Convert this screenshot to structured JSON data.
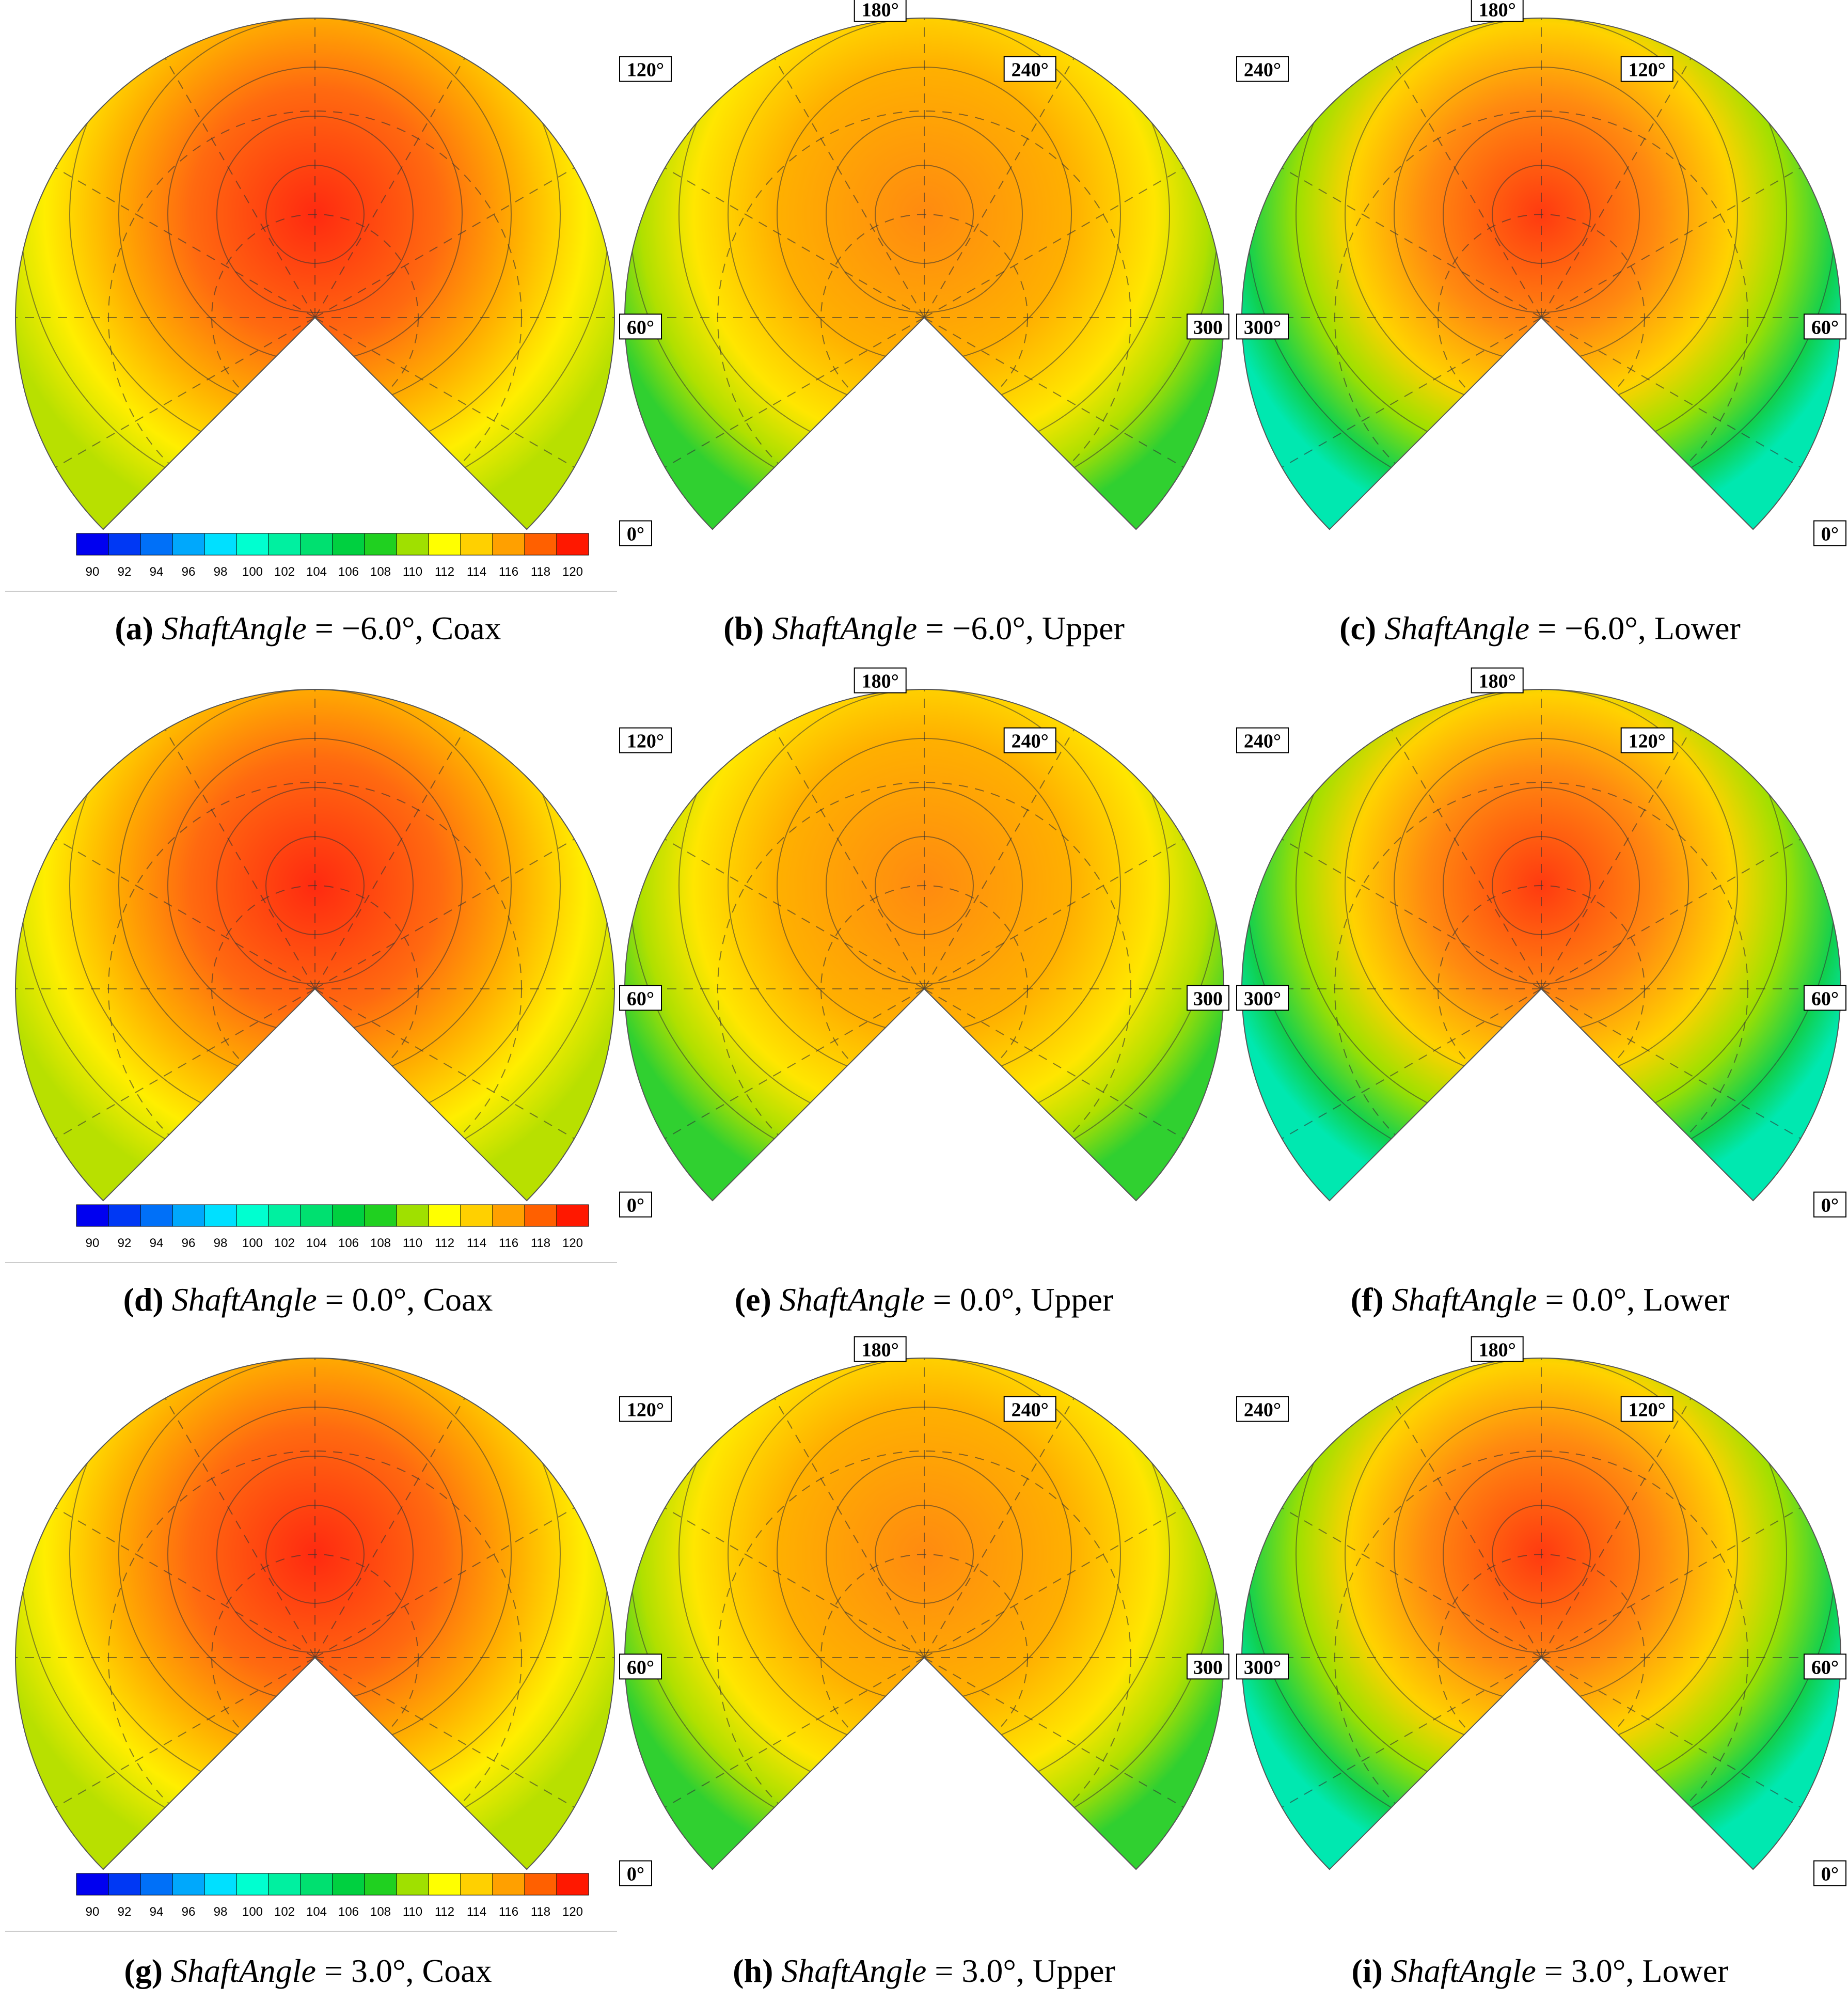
{
  "colorbar": {
    "labels": [
      "90",
      "92",
      "94",
      "96",
      "98",
      "100",
      "102",
      "104",
      "106",
      "108",
      "110",
      "112",
      "114",
      "116",
      "118",
      "120"
    ],
    "colors": [
      "#0000f0",
      "#0038f4",
      "#0070f8",
      "#00a8fc",
      "#00e0ff",
      "#00ffd0",
      "#00f0a0",
      "#00e070",
      "#00d040",
      "#20d020",
      "#a0e000",
      "#ffff00",
      "#ffd000",
      "#ffa000",
      "#ff6000",
      "#ff1800"
    ]
  },
  "chart_data": [
    {
      "id": "a",
      "type": "heatmap",
      "view": "coax",
      "shaft_angle": -6.0,
      "angle_labels": [],
      "range": [
        90,
        120
      ]
    },
    {
      "id": "b",
      "type": "heatmap",
      "view": "upper",
      "shaft_angle": -6.0,
      "angle_labels": [
        "180°",
        "120°",
        "240°",
        "60°",
        "300",
        "0°"
      ],
      "range": [
        90,
        120
      ]
    },
    {
      "id": "c",
      "type": "heatmap",
      "view": "lower",
      "shaft_angle": -6.0,
      "angle_labels": [
        "180°",
        "240°",
        "120°",
        "300°",
        "60°",
        "0°"
      ],
      "range": [
        90,
        120
      ]
    },
    {
      "id": "d",
      "type": "heatmap",
      "view": "coax",
      "shaft_angle": 0.0,
      "angle_labels": [],
      "range": [
        90,
        120
      ]
    },
    {
      "id": "e",
      "type": "heatmap",
      "view": "upper",
      "shaft_angle": 0.0,
      "angle_labels": [
        "180°",
        "120°",
        "240°",
        "60°",
        "300",
        "0°"
      ],
      "range": [
        90,
        120
      ]
    },
    {
      "id": "f",
      "type": "heatmap",
      "view": "lower",
      "shaft_angle": 0.0,
      "angle_labels": [
        "180°",
        "240°",
        "120°",
        "300°",
        "60°",
        "0°"
      ],
      "range": [
        90,
        120
      ]
    },
    {
      "id": "g",
      "type": "heatmap",
      "view": "coax",
      "shaft_angle": 3.0,
      "angle_labels": [],
      "range": [
        90,
        120
      ]
    },
    {
      "id": "h",
      "type": "heatmap",
      "view": "upper",
      "shaft_angle": 3.0,
      "angle_labels": [
        "180°",
        "120°",
        "240°",
        "60°",
        "300",
        "0°"
      ],
      "range": [
        90,
        120
      ]
    },
    {
      "id": "i",
      "type": "heatmap",
      "view": "lower",
      "shaft_angle": 3.0,
      "angle_labels": [
        "180°",
        "240°",
        "120°",
        "300°",
        "60°",
        "0°"
      ],
      "range": [
        90,
        120
      ]
    }
  ],
  "captions": [
    {
      "letter": "a",
      "text": "ShaftAngle = −6.0°, Coax"
    },
    {
      "letter": "b",
      "text": "ShaftAngle = −6.0°, Upper"
    },
    {
      "letter": "c",
      "text": "ShaftAngle = −6.0°, Lower"
    },
    {
      "letter": "d",
      "text": "ShaftAngle = 0.0°, Coax"
    },
    {
      "letter": "e",
      "text": "ShaftAngle = 0.0°, Upper"
    },
    {
      "letter": "f",
      "text": "ShaftAngle = 0.0°, Lower"
    },
    {
      "letter": "g",
      "text": "ShaftAngle = 3.0°, Coax"
    },
    {
      "letter": "h",
      "text": "ShaftAngle = 3.0°, Upper"
    },
    {
      "letter": "i",
      "text": "ShaftAngle = 3.0°, Lower"
    }
  ]
}
